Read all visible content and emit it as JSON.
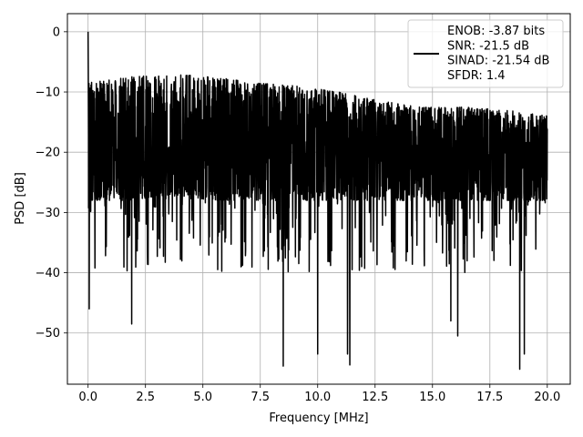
{
  "chart_data": {
    "type": "line",
    "title": "",
    "xlabel": "Frequency [MHz]",
    "ylabel": "PSD [dB]",
    "xlim": [
      -0.9,
      21.0
    ],
    "ylim": [
      -58.5,
      3.0
    ],
    "x_ticks": [
      0.0,
      2.5,
      5.0,
      7.5,
      10.0,
      12.5,
      15.0,
      17.5,
      20.0
    ],
    "x_tick_labels": [
      "0.0",
      "2.5",
      "5.0",
      "7.5",
      "10.0",
      "12.5",
      "15.0",
      "17.5",
      "20.0"
    ],
    "y_ticks": [
      0,
      -10,
      -20,
      -30,
      -40,
      -50
    ],
    "y_tick_labels": [
      "0",
      "−10",
      "−20",
      "−30",
      "−40",
      "−50"
    ],
    "grid": true,
    "legend_position": "top-right",
    "series": [
      {
        "name": "ENOB: -3.87 bits\nSNR: -21.5 dB\nSINAD: -21.54 dB\nSFDR: 1.4",
        "color": "#000000",
        "x_range": [
          0.0,
          20.0
        ],
        "peak": {
          "x": 0.0,
          "y": 0.0
        },
        "noise_floor_center": -20.5,
        "noise_upper_envelope": [
          -8.5,
          -7.5,
          -7,
          -7.5,
          -8.5,
          -9,
          -10,
          -11.5,
          -12.5,
          -12.5,
          -13,
          -14
        ],
        "noise_lower_envelope": [
          -28,
          -28,
          -27,
          -28,
          -28,
          -28,
          -28,
          -28,
          -28,
          -28,
          -28,
          -28
        ],
        "notable_dips": [
          {
            "x": 0.05,
            "y": -46
          },
          {
            "x": 1.9,
            "y": -48.5
          },
          {
            "x": 8.5,
            "y": -55.5
          },
          {
            "x": 10.0,
            "y": -53.5
          },
          {
            "x": 11.4,
            "y": -55.3
          },
          {
            "x": 11.3,
            "y": -53.5
          },
          {
            "x": 15.8,
            "y": -48
          },
          {
            "x": 16.1,
            "y": -50.5
          },
          {
            "x": 18.8,
            "y": -56
          },
          {
            "x": 19.0,
            "y": -53.5
          }
        ]
      }
    ]
  }
}
